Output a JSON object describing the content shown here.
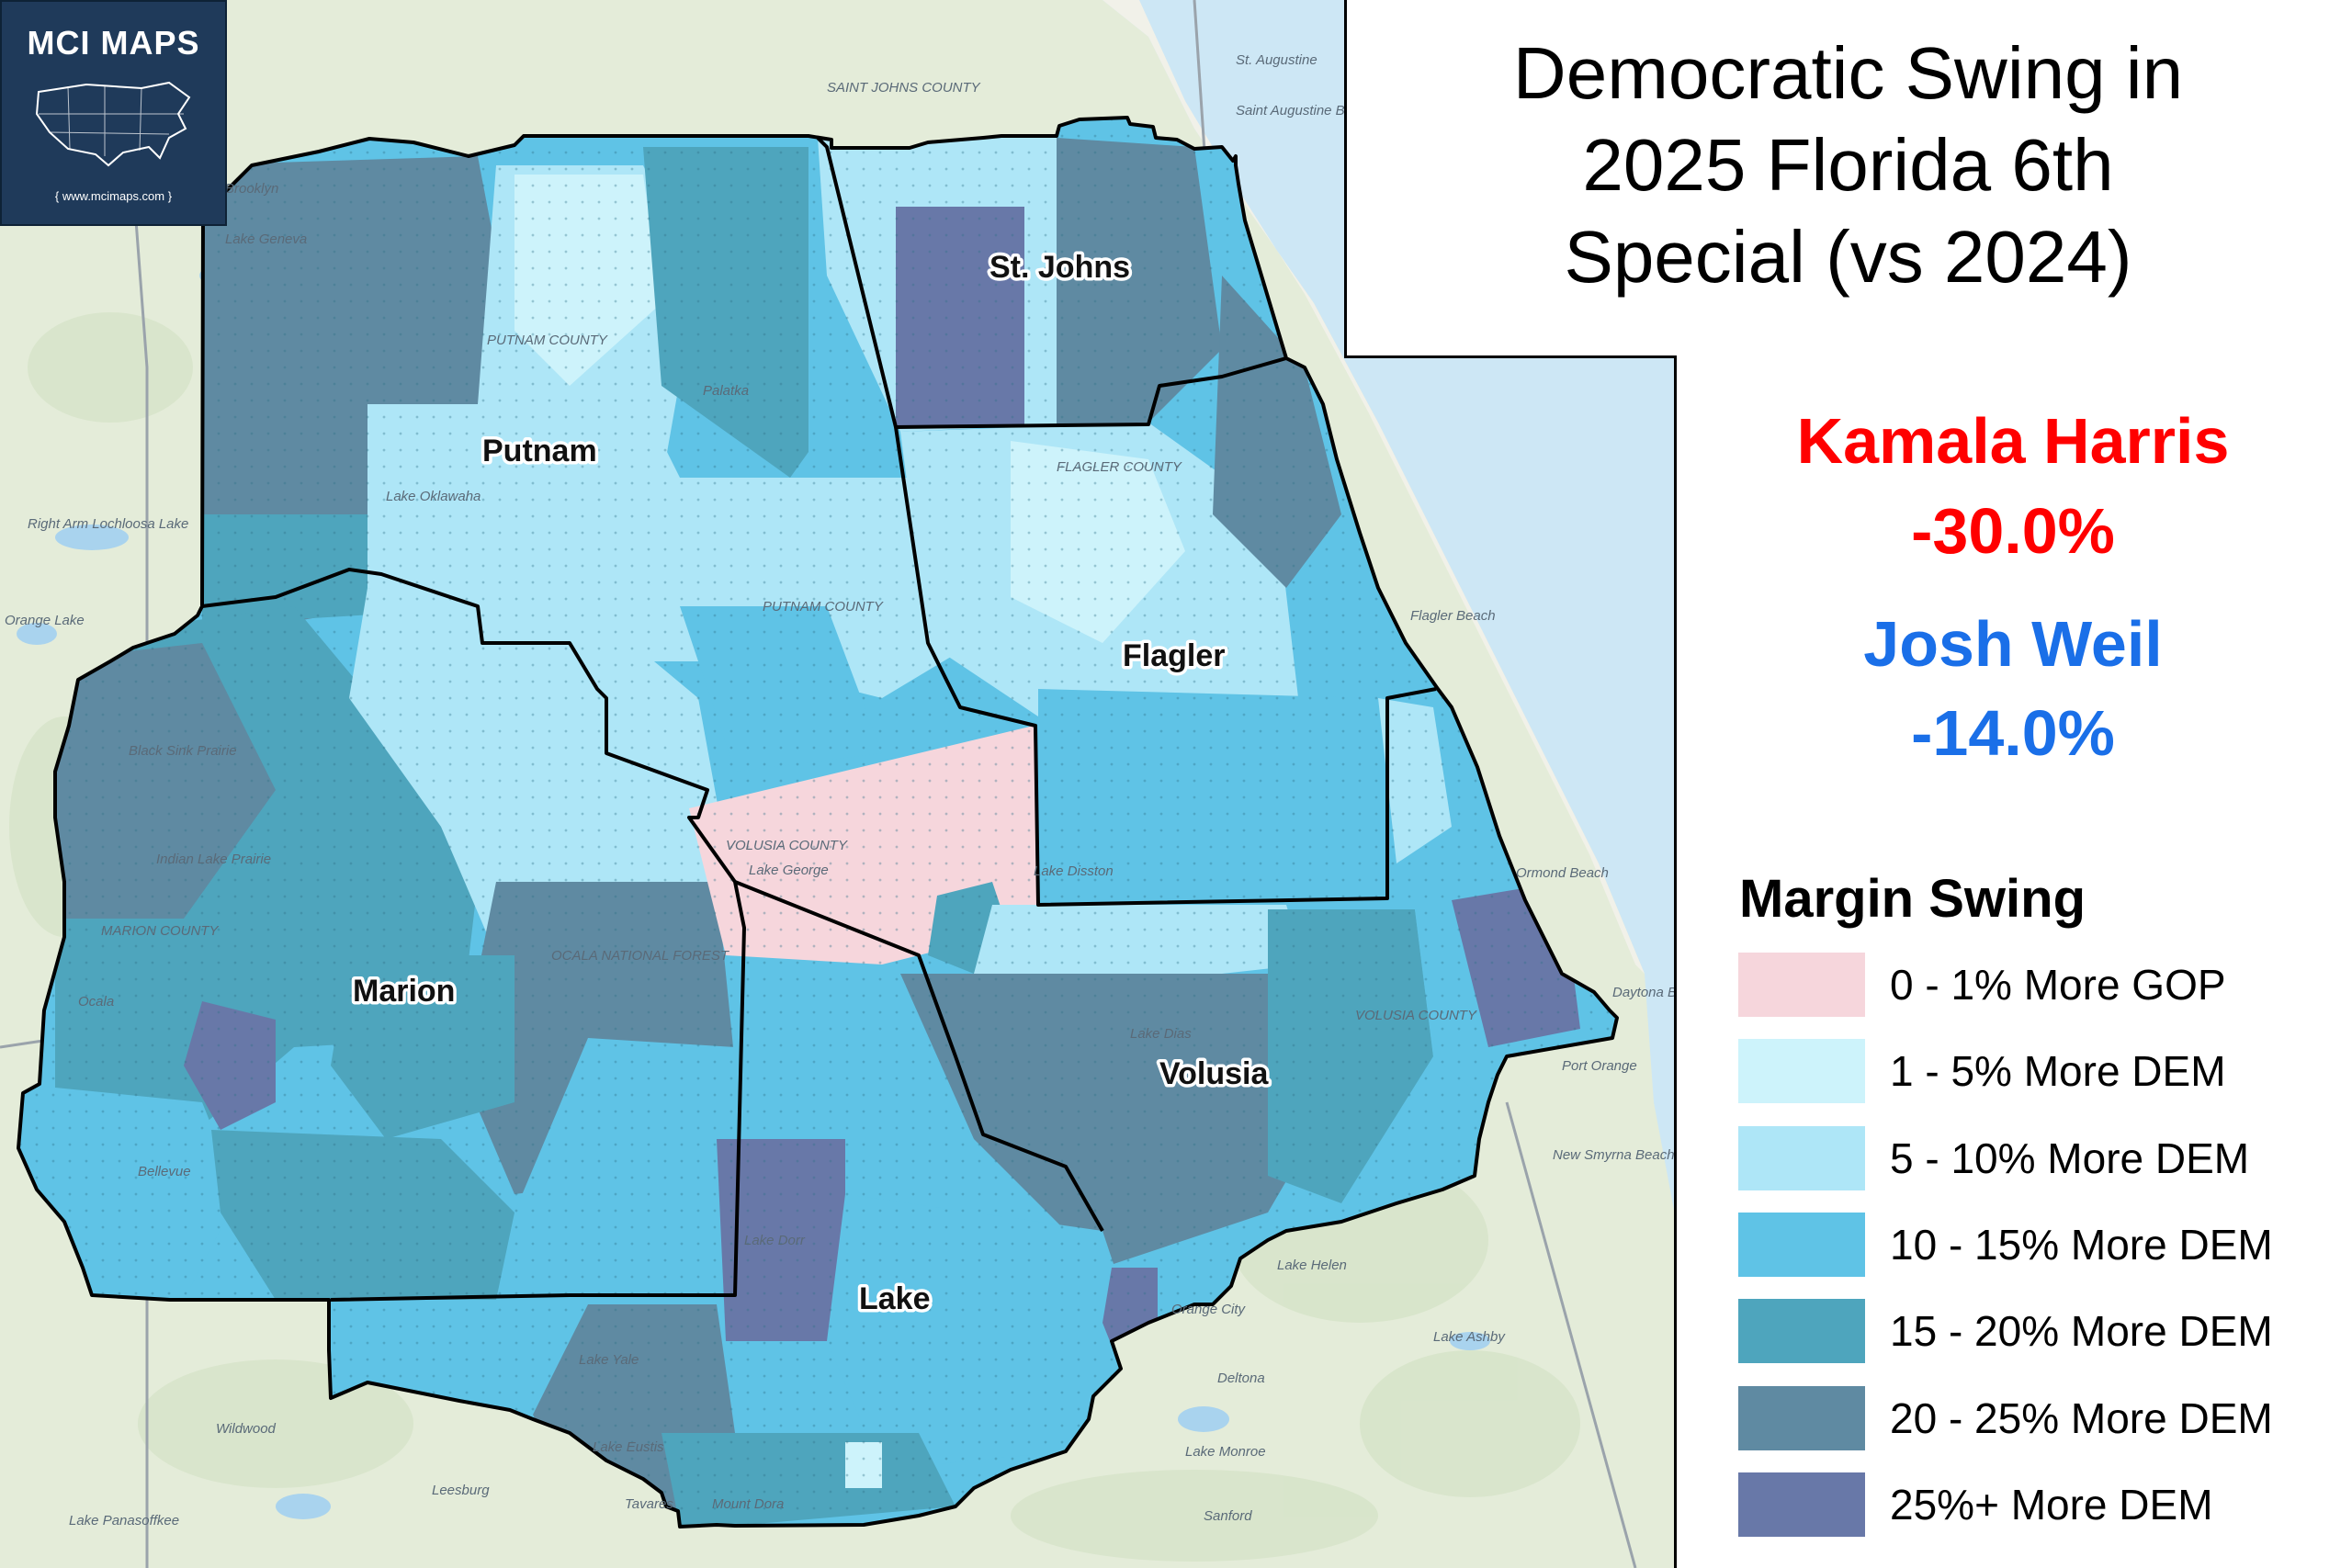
{
  "branding": {
    "name": "MCI MAPS",
    "url": "{ www.mcimaps.com }"
  },
  "title": {
    "line1": "Democratic Swing in",
    "line2": "2025 Florida 6th",
    "line3": "Special (vs 2024)"
  },
  "candidates": [
    {
      "name": "Kamala Harris",
      "pct": "-30.0%",
      "color": "#ff0000"
    },
    {
      "name": "Josh Weil",
      "pct": "-14.0%",
      "color": "#1a6fe8"
    }
  ],
  "legend": {
    "title": "Margin Swing",
    "items": [
      {
        "label": "0 - 1% More GOP",
        "color": "#f6d6dc"
      },
      {
        "label": "1 - 5% More DEM",
        "color": "#cdf3fb"
      },
      {
        "label": "5 - 10% More DEM",
        "color": "#aee6f7"
      },
      {
        "label": "10 - 15% More DEM",
        "color": "#5fc3e6"
      },
      {
        "label": "15 - 20% More DEM",
        "color": "#4ea5bd"
      },
      {
        "label": "20 - 25% More DEM",
        "color": "#5f8aa2"
      },
      {
        "label": "25%+ More DEM",
        "color": "#6878a8"
      }
    ]
  },
  "counties": [
    {
      "name": "Putnam"
    },
    {
      "name": "St. Johns"
    },
    {
      "name": "Flagler"
    },
    {
      "name": "Marion"
    },
    {
      "name": "Volusia"
    },
    {
      "name": "Lake"
    }
  ],
  "basemap_labels": [
    "SAINT JOHNS COUNTY",
    "St. Augustine",
    "Saint Augustine Beach",
    "Brooklyn",
    "Lake Geneva",
    "Right Arm Lochloosa Lake",
    "Orange Lake",
    "PUTNAM COUNTY",
    "Palatka",
    "Lake Oklawaha",
    "FLAGLER COUNTY",
    "Flagler Beach",
    "PUTNAM COUNTY",
    "VOLUSIA COUNTY",
    "Lake George",
    "Lake Disston",
    "Ormond Beach",
    "Daytona Beach",
    "Port Orange",
    "Indian Lake Prairie",
    "MARION COUNTY",
    "Ocala",
    "OCALA NATIONAL FOREST",
    "Lake Dias",
    "VOLUSIA COUNTY",
    "Lake Dorr",
    "Lake Helen",
    "Orange City",
    "Deltona",
    "Lake Monroe",
    "Sanford",
    "Lake Yale",
    "Lake Eustis",
    "Tavares",
    "Mount Dora",
    "Leesburg",
    "Wildwood",
    "Lake Panasoffkee",
    "Bellevue",
    "Lake Ashby",
    "New Smyrna Beach",
    "Black Sink Prairie"
  ]
}
